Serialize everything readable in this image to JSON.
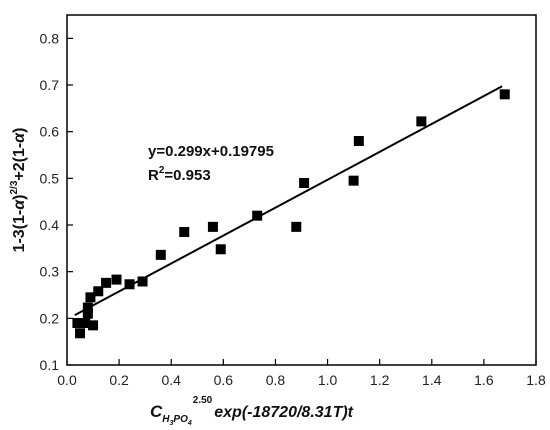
{
  "chart_data": {
    "type": "scatter",
    "xlabel": "C_{H3PO4}^{2.50} exp(-18720/8.31T)t",
    "xlabel_parts": {
      "c": "C",
      "h": "H",
      "sub3": "3",
      "po": "PO",
      "sub4": "4",
      "exp_sup": "2.50",
      "tail": "exp(-18720/8.31",
      "t_var": "T",
      "tail2": ")t"
    },
    "ylabel": "1-3(1-α)^{2/3}+2(1-α)",
    "ylabel_parts": {
      "a": "1-3(1-",
      "alpha1": "α",
      "b": ")",
      "sup": "2/3",
      "c": "+2(1-",
      "alpha2": "α",
      "d": ")"
    },
    "xlim": [
      0.0,
      1.8
    ],
    "ylim": [
      0.1,
      0.85
    ],
    "xticks": [
      "0.0",
      "0.2",
      "0.4",
      "0.6",
      "0.8",
      "1.0",
      "1.2",
      "1.4",
      "1.6",
      "1.8"
    ],
    "yticks": [
      "0.1",
      "0.2",
      "0.3",
      "0.4",
      "0.5",
      "0.6",
      "0.7",
      "0.8"
    ],
    "grid": false,
    "series": [
      {
        "marker": "square",
        "color": "#000000",
        "points": [
          {
            "x": 0.04,
            "y": 0.19
          },
          {
            "x": 0.05,
            "y": 0.168
          },
          {
            "x": 0.07,
            "y": 0.19
          },
          {
            "x": 0.08,
            "y": 0.21
          },
          {
            "x": 0.08,
            "y": 0.223
          },
          {
            "x": 0.09,
            "y": 0.245
          },
          {
            "x": 0.1,
            "y": 0.185
          },
          {
            "x": 0.12,
            "y": 0.258
          },
          {
            "x": 0.15,
            "y": 0.276
          },
          {
            "x": 0.19,
            "y": 0.283
          },
          {
            "x": 0.24,
            "y": 0.273
          },
          {
            "x": 0.29,
            "y": 0.279
          },
          {
            "x": 0.36,
            "y": 0.336
          },
          {
            "x": 0.45,
            "y": 0.385
          },
          {
            "x": 0.56,
            "y": 0.396
          },
          {
            "x": 0.59,
            "y": 0.348
          },
          {
            "x": 0.73,
            "y": 0.42
          },
          {
            "x": 0.88,
            "y": 0.396
          },
          {
            "x": 0.91,
            "y": 0.49
          },
          {
            "x": 1.1,
            "y": 0.495
          },
          {
            "x": 1.12,
            "y": 0.58
          },
          {
            "x": 1.36,
            "y": 0.622
          },
          {
            "x": 1.68,
            "y": 0.68
          }
        ]
      }
    ],
    "fit_line": {
      "slope": 0.299,
      "intercept": 0.19795,
      "x_start": 0.03,
      "x_end": 1.67
    },
    "annotations": {
      "equation": "y=0.299x+0.19795",
      "r2_prefix": "R",
      "r2_sup": "2",
      "r2_value": "=0.953"
    }
  }
}
